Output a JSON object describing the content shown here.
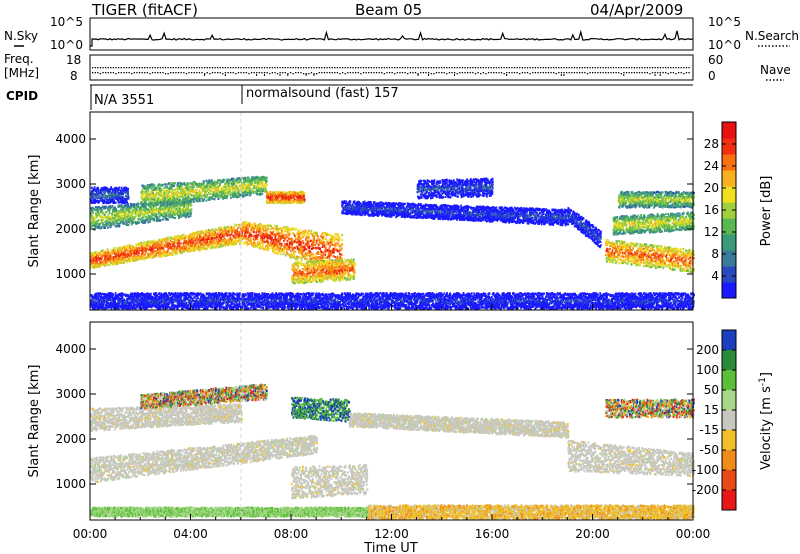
{
  "chart_data": [
    {
      "type": "line",
      "panel": "noise",
      "title": "TIGER (fitACF)",
      "subtitle": "Beam 05",
      "date": "04/Apr/2009",
      "left_label": "N.Sky",
      "right_label": "N.Search",
      "left_ticks": [
        "10^5",
        "10^0"
      ],
      "right_ticks": [
        "10^5",
        "10^0"
      ],
      "xlim": [
        0,
        24
      ]
    },
    {
      "type": "scatter",
      "panel": "frequency",
      "left_label_lines": [
        "Freq.",
        "[MHz]"
      ],
      "right_label": "Nave",
      "left_ticks": [
        "18",
        "8"
      ],
      "right_ticks": [
        "60",
        "0"
      ],
      "freq_mhz_approx": 13,
      "nave_approx": 30,
      "xlim": [
        0,
        24
      ]
    },
    {
      "type": "table",
      "panel": "cpid",
      "label": "CPID",
      "entries": [
        {
          "text": "N/A 3551",
          "start_hour": 0
        },
        {
          "text": "normalsound (fast) 157",
          "start_hour": 6.0
        }
      ]
    },
    {
      "type": "heatmap",
      "panel": "power",
      "ylabel": "Slant Range [km]",
      "yticks": [
        "4000",
        "3000",
        "2000",
        "1000"
      ],
      "ylim": [
        200,
        4600
      ],
      "xlim": [
        0,
        24
      ],
      "colorbar_label": "Power [dB]",
      "colorbar_ticks": [
        "28",
        "24",
        "20",
        "16",
        "12",
        "8",
        "4"
      ],
      "colorbar_range": [
        0,
        32
      ],
      "scatter_bands": [
        {
          "t0": 0,
          "t1": 6,
          "r0": 1150,
          "r1": 1500,
          "r0b": 1700,
          "r1b": 2150,
          "level": 0.9
        },
        {
          "t0": 6,
          "t1": 10,
          "r0": 1700,
          "r1": 2200,
          "r0b": 1050,
          "r1b": 1900,
          "level": 0.92
        },
        {
          "t0": 8,
          "t1": 10.5,
          "r0": 800,
          "r1": 1300,
          "r0b": 900,
          "r1b": 1350,
          "level": 0.85
        },
        {
          "t0": 0,
          "t1": 4,
          "r0": 2000,
          "r1": 2500,
          "r0b": 2300,
          "r1b": 2700,
          "level": 0.55
        },
        {
          "t0": 2,
          "t1": 7,
          "r0": 2500,
          "r1": 3000,
          "r0b": 2800,
          "r1b": 3200,
          "level": 0.6
        },
        {
          "t0": 7,
          "t1": 8.5,
          "r0": 2600,
          "r1": 2850,
          "r0b": 2600,
          "r1b": 2850,
          "level": 0.95
        },
        {
          "t0": 0,
          "t1": 1.5,
          "r0": 2600,
          "r1": 2950,
          "r0b": 2600,
          "r1b": 2950,
          "level": 0.2
        },
        {
          "t0": 10,
          "t1": 19,
          "r0": 2350,
          "r1": 2650,
          "r0b": 2100,
          "r1b": 2450,
          "level": 0.12
        },
        {
          "t0": 13,
          "t1": 16,
          "r0": 2700,
          "r1": 3100,
          "r0b": 2750,
          "r1b": 3150,
          "level": 0.15
        },
        {
          "t0": 19,
          "t1": 20.3,
          "r0": 2200,
          "r1": 2500,
          "r0b": 1600,
          "r1b": 2000,
          "level": 0.15
        },
        {
          "t0": 20.5,
          "t1": 24,
          "r0": 1300,
          "r1": 1800,
          "r0b": 1050,
          "r1b": 1550,
          "level": 0.85
        },
        {
          "t0": 20.8,
          "t1": 24,
          "r0": 1900,
          "r1": 2300,
          "r0b": 2000,
          "r1b": 2400,
          "level": 0.6
        },
        {
          "t0": 21,
          "t1": 24,
          "r0": 2500,
          "r1": 2850,
          "r0b": 2500,
          "r1b": 2850,
          "level": 0.55
        },
        {
          "t0": 0,
          "t1": 24,
          "r0": 250,
          "r1": 600,
          "r0b": 250,
          "r1b": 600,
          "level": 0.08
        }
      ]
    },
    {
      "type": "heatmap",
      "panel": "velocity",
      "ylabel": "Slant Range [km]",
      "yticks": [
        "4000",
        "3000",
        "2000",
        "1000"
      ],
      "ylim": [
        200,
        4600
      ],
      "xlim": [
        0,
        24
      ],
      "xticks": [
        "00:00",
        "04:00",
        "08:00",
        "12:00",
        "16:00",
        "20:00",
        "00:00"
      ],
      "xlabel": "Time UT",
      "colorbar_label": "Velocity [m s",
      "colorbar_label_sup": "-1",
      "colorbar_label_end": "]",
      "colorbar_ticks": [
        "200",
        "100",
        "50",
        "15",
        "-15",
        "-50",
        "-100",
        "-200"
      ],
      "colorbar_colors": [
        "#1a3fbf",
        "#2a8a3a",
        "#5bbf3a",
        "#a8d88a",
        "#c8c8c0",
        "#f0c028",
        "#f08a18",
        "#e84a18",
        "#e81818"
      ],
      "scatter_bands": [
        {
          "t0": 0,
          "t1": 9,
          "r0": 1050,
          "r1": 1600,
          "r0b": 1700,
          "r1b": 2100,
          "kind": "gray"
        },
        {
          "t0": 8,
          "t1": 11,
          "r0": 700,
          "r1": 1400,
          "r0b": 800,
          "r1b": 1450,
          "kind": "gray"
        },
        {
          "t0": 0,
          "t1": 6,
          "r0": 2200,
          "r1": 2700,
          "r0b": 2400,
          "r1b": 2800,
          "kind": "gray"
        },
        {
          "t0": 2,
          "t1": 7,
          "r0": 2700,
          "r1": 3000,
          "r0b": 2900,
          "r1b": 3250,
          "kind": "mixed"
        },
        {
          "t0": 8,
          "t1": 10.3,
          "r0": 2500,
          "r1": 2950,
          "r0b": 2400,
          "r1b": 2900,
          "kind": "vel"
        },
        {
          "t0": 10.3,
          "t1": 19,
          "r0": 2300,
          "r1": 2600,
          "r0b": 2050,
          "r1b": 2400,
          "kind": "gray"
        },
        {
          "t0": 19,
          "t1": 24,
          "r0": 1300,
          "r1": 2000,
          "r0b": 1200,
          "r1b": 1700,
          "kind": "gray"
        },
        {
          "t0": 20.5,
          "t1": 24,
          "r0": 2500,
          "r1": 2900,
          "r0b": 2500,
          "r1b": 2900,
          "kind": "mixed"
        },
        {
          "t0": 11,
          "t1": 24,
          "r0": 250,
          "r1": 550,
          "r0b": 250,
          "r1b": 550,
          "kind": "orange"
        },
        {
          "t0": 0,
          "t1": 11,
          "r0": 300,
          "r1": 500,
          "r0b": 300,
          "r1b": 500,
          "kind": "green"
        }
      ]
    }
  ]
}
